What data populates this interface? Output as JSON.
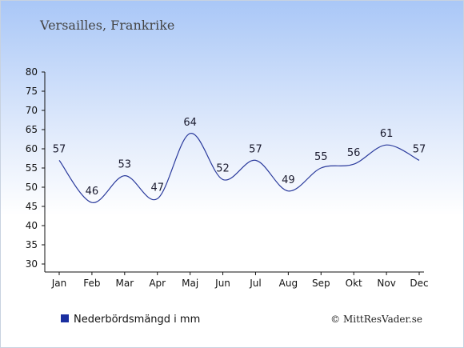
{
  "chart_data": {
    "type": "line",
    "title": "Versailles, Frankrike",
    "categories": [
      "Jan",
      "Feb",
      "Mar",
      "Apr",
      "Maj",
      "Jun",
      "Jul",
      "Aug",
      "Sep",
      "Okt",
      "Nov",
      "Dec"
    ],
    "series": [
      {
        "name": "Nederbördsmängd i mm",
        "values": [
          57,
          46,
          53,
          47,
          64,
          52,
          57,
          49,
          55,
          56,
          61,
          57
        ]
      }
    ],
    "ylim": [
      30,
      80
    ],
    "yticks": [
      30,
      35,
      40,
      45,
      50,
      55,
      60,
      65,
      70,
      75,
      80
    ],
    "grid": false,
    "legend_position": "bottom-left",
    "colors": {
      "line": "#2a3a9c",
      "legend_marker": "#1a2fa0",
      "background_top": "#a9c7f7",
      "background_bottom": "#ffffff"
    }
  },
  "credit": "© MittResVader.se"
}
